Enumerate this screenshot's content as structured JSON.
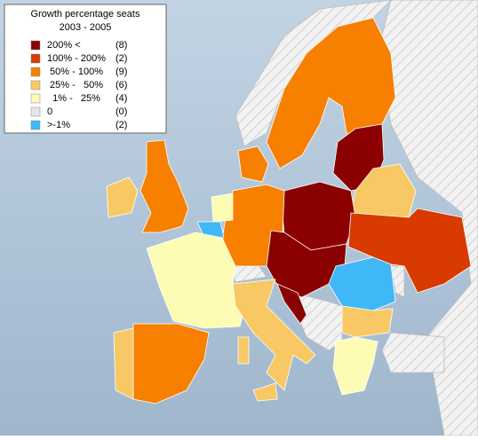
{
  "legend": {
    "title": "Growth percentage seats",
    "subtitle": "2003 - 2005",
    "items": [
      {
        "label": "200% <",
        "count": "(8)",
        "color": "#8b0000"
      },
      {
        "label": "100% - 200%",
        "count": "(2)",
        "color": "#d83a00"
      },
      {
        "label": " 50% - 100%",
        "count": "(9)",
        "color": "#f78000"
      },
      {
        "label": " 25% -   50%",
        "count": "(6)",
        "color": "#f8c864"
      },
      {
        "label": "  1% -   25%",
        "count": "(4)",
        "color": "#fcfcb4"
      },
      {
        "label": "0",
        "count": "(0)",
        "color": "#e6e6e6"
      },
      {
        "label": ">-1%",
        "count": "(2)",
        "color": "#40b8f8"
      }
    ]
  }
}
